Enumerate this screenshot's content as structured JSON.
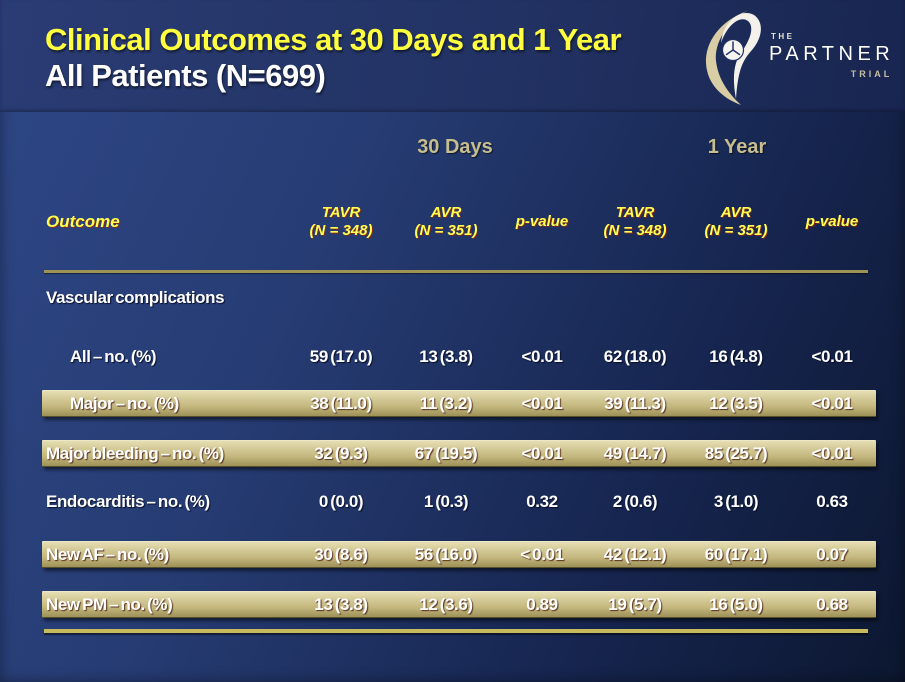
{
  "slide": {
    "title_line1": "Clinical Outcomes at 30 Days and 1 Year",
    "title_line2": "All Patients (N=699)"
  },
  "logo": {
    "the": "THE",
    "name": "PARTNER",
    "trial": "TRIAL"
  },
  "colors": {
    "title_yellow": "#ffff3f",
    "header_yellow": "#ffff52",
    "group_header_khaki": "#c6be8e",
    "highlight_bar_light": "#e6deb4",
    "highlight_bar_dark": "#9e9158",
    "rule_tan": "#c7ba5d",
    "background_blue_light": "#2e4787",
    "background_blue_dark": "#0c1730"
  },
  "table": {
    "group_headers": [
      {
        "label": "30 Days"
      },
      {
        "label": "1 Year"
      }
    ],
    "columns": [
      {
        "line1": "Outcome",
        "line2": ""
      },
      {
        "line1": "TAVR",
        "line2": "(N = 348)"
      },
      {
        "line1": "AVR",
        "line2": "(N = 351)"
      },
      {
        "line1": "p-value",
        "line2": ""
      },
      {
        "line1": "TAVR",
        "line2": "(N = 348)"
      },
      {
        "line1": "AVR",
        "line2": "(N = 351)"
      },
      {
        "line1": "p-value",
        "line2": ""
      }
    ],
    "rows": [
      {
        "label": "Vascular complications",
        "type": "section",
        "indent": false,
        "values": [
          "",
          "",
          "",
          "",
          "",
          ""
        ]
      },
      {
        "label": "All – no. (%)",
        "type": "plain",
        "indent": true,
        "values": [
          "59 (17.0)",
          "13 (3.8)",
          "<0.01",
          "62 (18.0)",
          "16 (4.8)",
          "<0.01"
        ]
      },
      {
        "label": "Major – no. (%)",
        "type": "highlight",
        "indent": true,
        "values": [
          "38 (11.0)",
          "11 (3.2)",
          "<0.01",
          "39 (11.3)",
          "12 (3.5)",
          "<0.01"
        ]
      },
      {
        "label": "Major bleeding – no. (%)",
        "type": "highlight",
        "indent": false,
        "values": [
          "32 (9.3)",
          "67 (19.5)",
          "<0.01",
          "49 (14.7)",
          "85 (25.7)",
          "<0.01"
        ]
      },
      {
        "label": "Endocarditis – no. (%)",
        "type": "plain",
        "indent": false,
        "values": [
          "0 (0.0)",
          "1 (0.3)",
          "0.32",
          "2 (0.6)",
          "3 (1.0)",
          "0.63"
        ]
      },
      {
        "label": "New AF – no. (%)",
        "type": "highlight",
        "indent": false,
        "values": [
          "30 (8.6)",
          "56 (16.0)",
          "< 0.01",
          "42 (12.1)",
          "60 (17.1)",
          "0.07"
        ]
      },
      {
        "label": "New PM – no. (%)",
        "type": "highlight",
        "indent": false,
        "values": [
          "13 (3.8)",
          "12 (3.6)",
          "0.89",
          "19 (5.7)",
          "16 (5.0)",
          "0.68"
        ]
      }
    ]
  }
}
